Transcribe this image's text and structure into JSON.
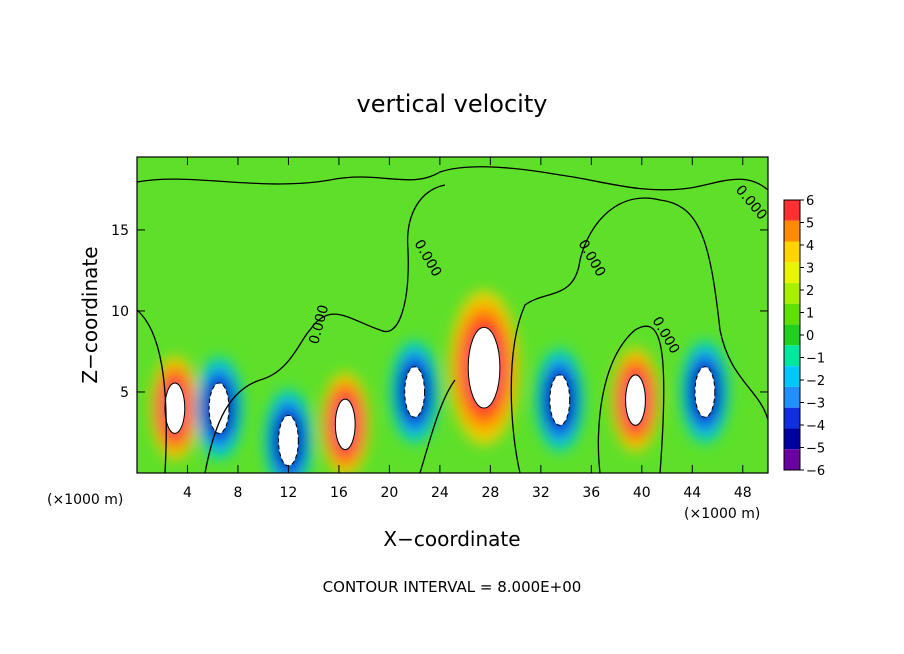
{
  "chart_data": {
    "type": "heatmap",
    "title": "vertical velocity",
    "xlabel": "X−coordinate",
    "ylabel": "Z−coordinate",
    "x_units": "(×1000 m)",
    "y_units": "(×1000 m)",
    "xlim": [
      0,
      50
    ],
    "ylim": [
      0,
      19.5
    ],
    "x_ticks": [
      4,
      8,
      12,
      16,
      20,
      24,
      28,
      32,
      36,
      40,
      44,
      48
    ],
    "y_ticks": [
      5,
      10,
      15
    ],
    "colorbar": {
      "range": [
        -6,
        6
      ],
      "labels": [
        "6",
        "5",
        "4",
        "3",
        "2",
        "1",
        "0",
        "−1",
        "−2",
        "−3",
        "−4",
        "−5",
        "−6"
      ],
      "colors": [
        "#ff3030",
        "#ff8c00",
        "#ffd400",
        "#e8f500",
        "#a8f000",
        "#60e000",
        "#22d020",
        "#00e8a0",
        "#00c8ff",
        "#2090ff",
        "#1030e0",
        "#0000a0",
        "#6a00a0"
      ]
    },
    "contour_label": "0.000",
    "contour_interval_text": "CONTOUR INTERVAL = 8.000E+00",
    "features": [
      {
        "kind": "updraft",
        "x": 27.5,
        "z": 6.5,
        "peak": 6
      },
      {
        "kind": "updraft",
        "x": 3.0,
        "z": 4.0,
        "peak": 6
      },
      {
        "kind": "updraft",
        "x": 16.5,
        "z": 3.0,
        "peak": 6
      },
      {
        "kind": "updraft",
        "x": 39.5,
        "z": 4.5,
        "peak": 6
      },
      {
        "kind": "downdraft",
        "x": 33.5,
        "z": 4.5,
        "peak": -6
      },
      {
        "kind": "downdraft",
        "x": 22.0,
        "z": 5.0,
        "peak": -6
      },
      {
        "kind": "downdraft",
        "x": 6.5,
        "z": 4.0,
        "peak": -5
      },
      {
        "kind": "downdraft",
        "x": 12.0,
        "z": 2.0,
        "peak": -5
      },
      {
        "kind": "downdraft",
        "x": 45.0,
        "z": 5.0,
        "peak": -5
      }
    ]
  }
}
